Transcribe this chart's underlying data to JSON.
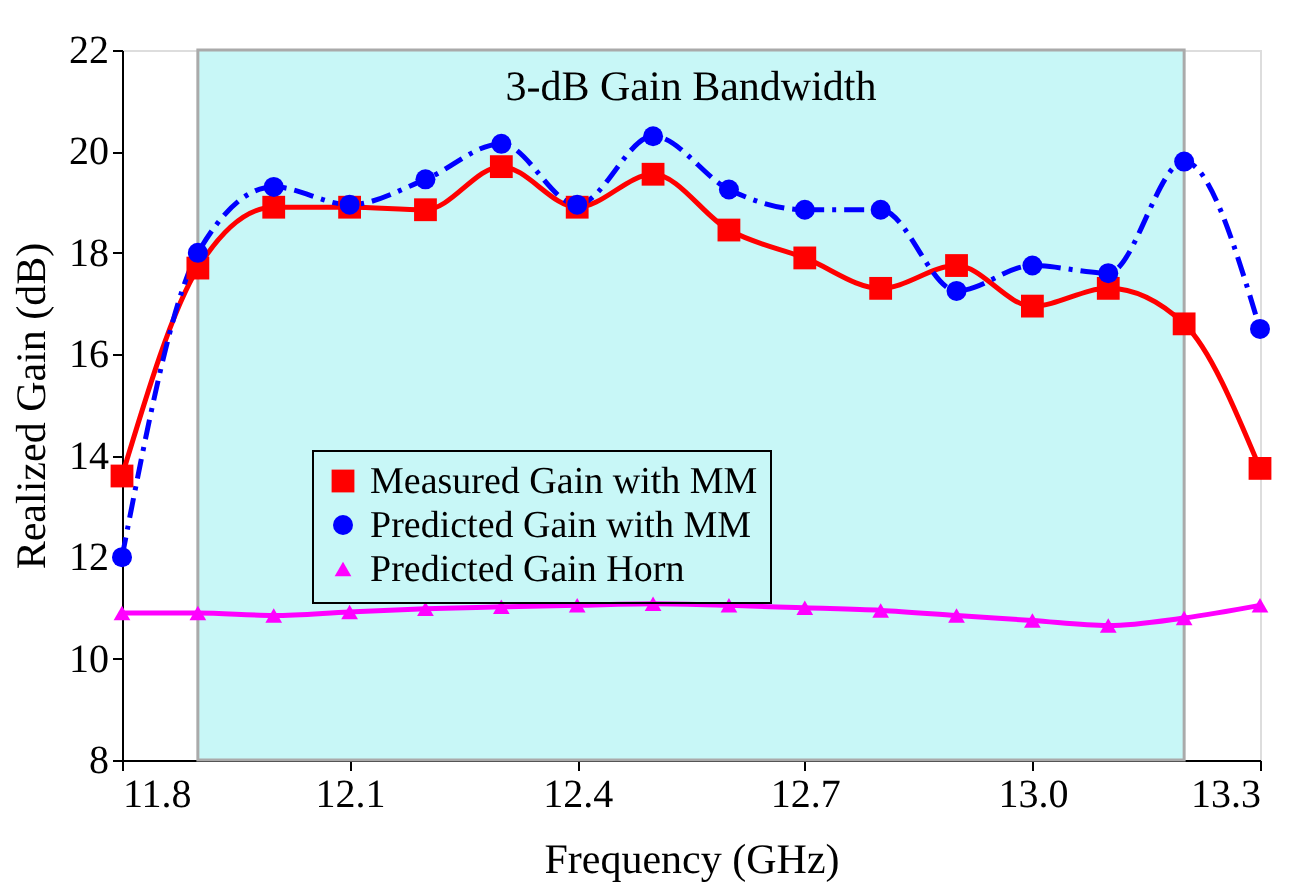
{
  "chart_data": {
    "type": "line",
    "xlabel": "Frequency (GHz)",
    "ylabel": "Realized Gain (dB)",
    "x": [
      11.8,
      11.9,
      12.0,
      12.1,
      12.2,
      12.3,
      12.4,
      12.5,
      12.6,
      12.7,
      12.8,
      12.9,
      13.0,
      13.1,
      13.2,
      13.3
    ],
    "series": [
      {
        "name": "Measured Gain with MM",
        "color": "#ff0000",
        "marker": "square",
        "line_style": "solid",
        "values": [
          13.6,
          17.7,
          18.9,
          18.9,
          18.85,
          19.7,
          18.9,
          19.55,
          18.45,
          17.9,
          17.3,
          17.75,
          16.95,
          17.3,
          16.6,
          13.75
        ]
      },
      {
        "name": "Predicted Gain with MM",
        "color": "#0000ff",
        "marker": "circle",
        "line_style": "dashdot",
        "values": [
          12.0,
          18.0,
          19.3,
          18.95,
          19.45,
          20.15,
          18.95,
          20.3,
          19.25,
          18.85,
          18.85,
          17.25,
          17.75,
          17.6,
          19.8,
          16.5
        ]
      },
      {
        "name": "Predicted Gain Horn",
        "color": "#ff00ff",
        "marker": "triangle",
        "line_style": "solid",
        "values": [
          10.9,
          10.9,
          10.85,
          10.92,
          10.98,
          11.02,
          11.05,
          11.08,
          11.05,
          11.0,
          10.95,
          10.85,
          10.75,
          10.65,
          10.8,
          11.05
        ]
      }
    ],
    "bands": [
      {
        "axis": "x",
        "from": 11.9,
        "to": 13.2,
        "label": "3-dB Gain Bandwidth",
        "color": "#c8f7f7"
      }
    ],
    "xlim": [
      11.8,
      13.3
    ],
    "xticks": [
      {
        "value": 11.8,
        "label": "11.8"
      },
      {
        "value": 12.1,
        "label": "12.1"
      },
      {
        "value": 12.4,
        "label": "12.4"
      },
      {
        "value": 12.7,
        "label": "12.7"
      },
      {
        "value": 13.0,
        "label": "13.0"
      },
      {
        "value": 13.3,
        "label": "13.3"
      }
    ],
    "ylim": [
      8,
      22
    ],
    "yticks": [
      8,
      10,
      12,
      14,
      16,
      18,
      20,
      22
    ],
    "grid": false,
    "legend": "left"
  }
}
